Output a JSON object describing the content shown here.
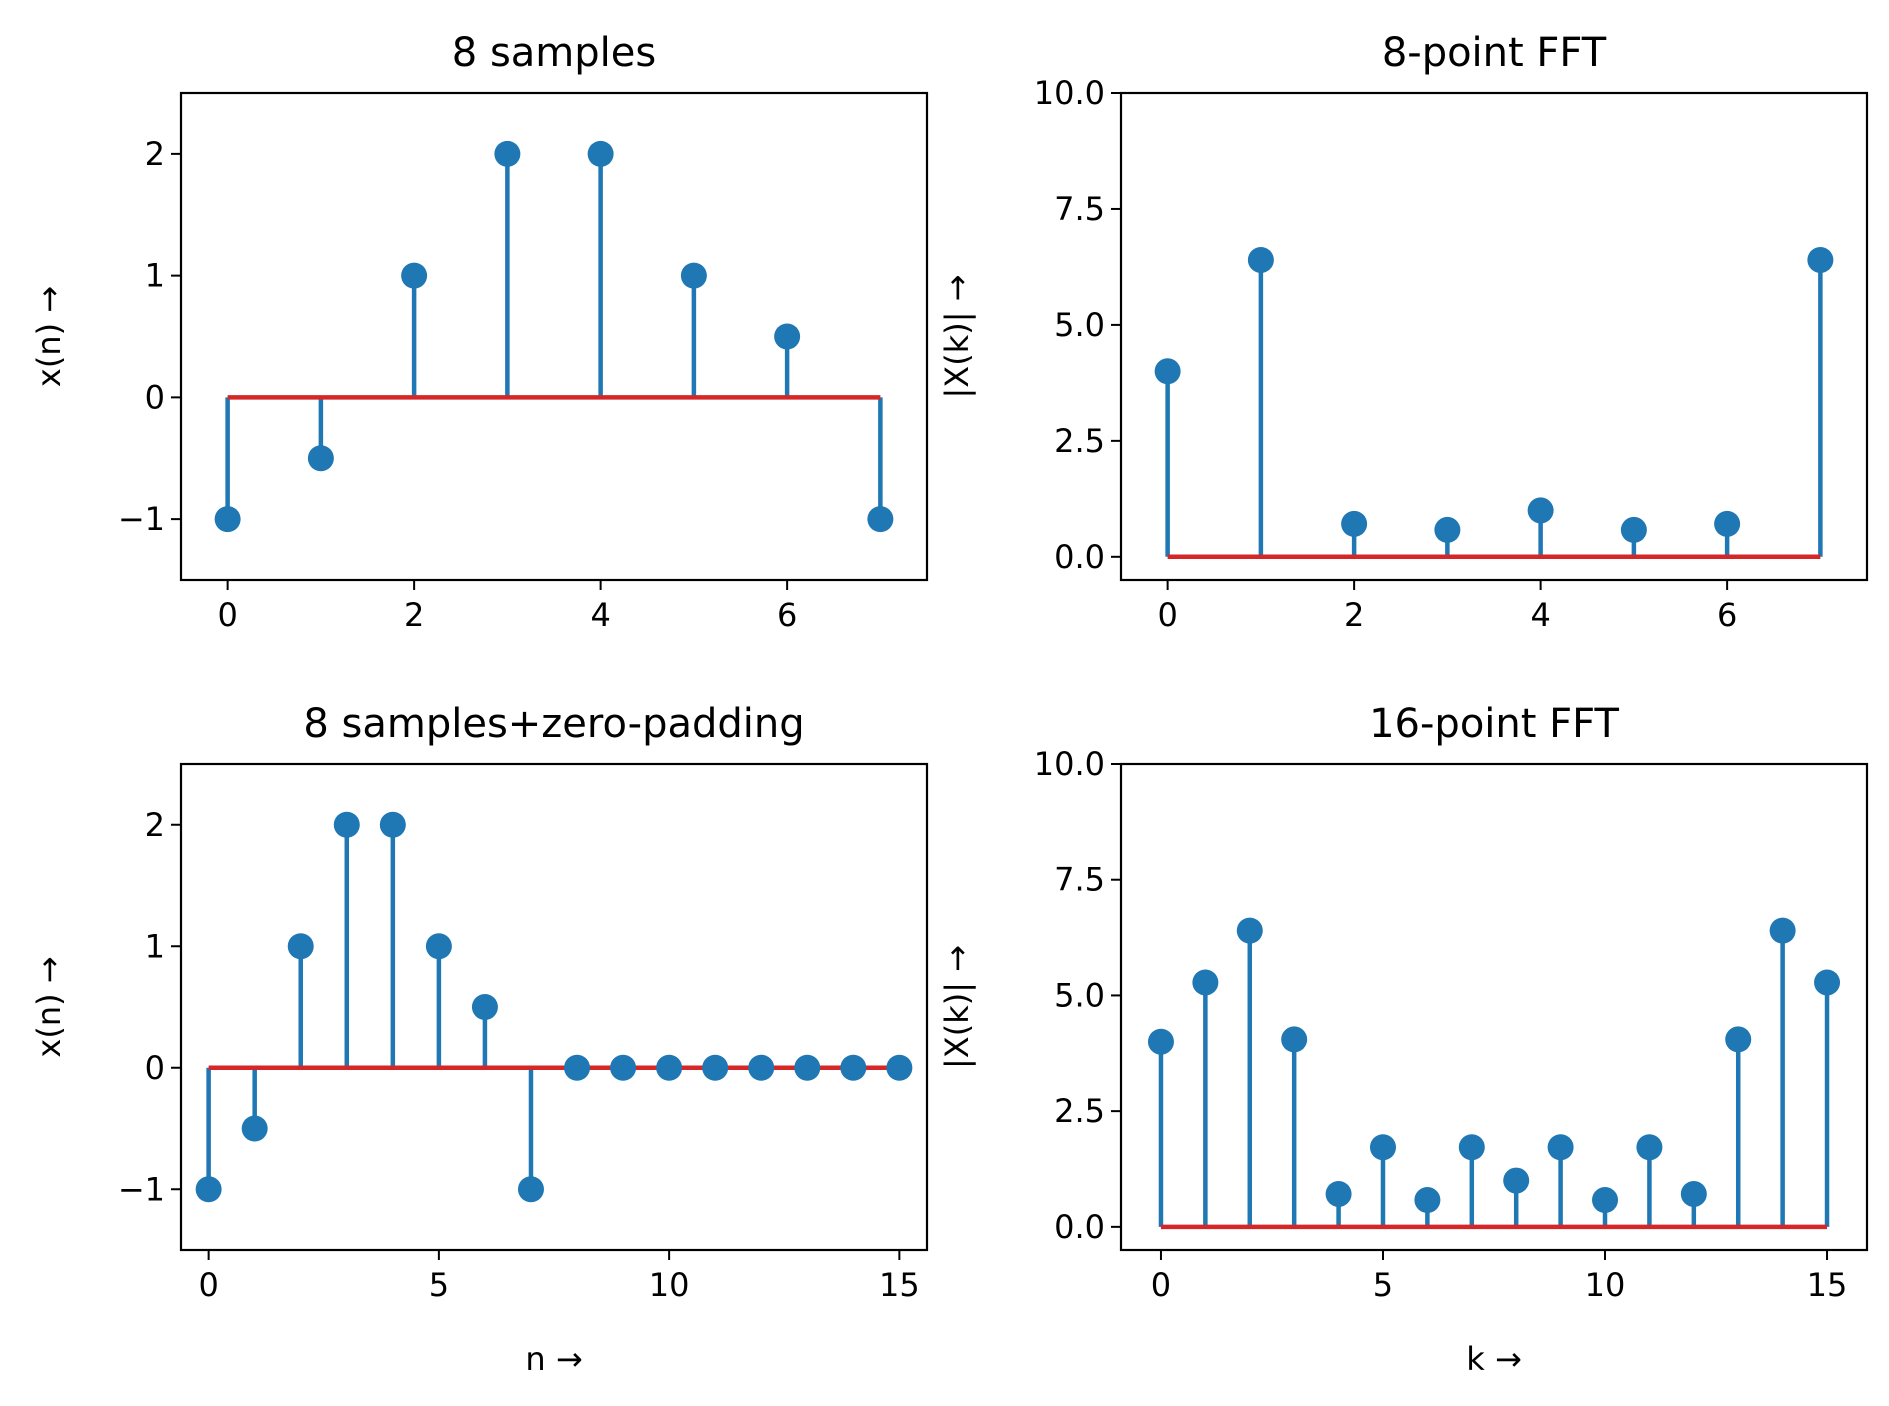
{
  "colors": {
    "stem": "#1f77b4",
    "baseline": "#d62728",
    "axes": "#000000",
    "background": "#ffffff"
  },
  "chart_data": [
    {
      "type": "stem",
      "title": "8 samples",
      "xlabel": "",
      "ylabel": "x(n) →",
      "xlim": [
        -0.5,
        7.5
      ],
      "ylim": [
        -1.5,
        2.5
      ],
      "xticks": [
        0,
        2,
        4,
        6
      ],
      "yticks": [
        -1,
        0,
        1,
        2
      ],
      "xtick_labels": [
        "0",
        "2",
        "4",
        "6"
      ],
      "ytick_labels": [
        "−1",
        "0",
        "1",
        "2"
      ],
      "x": [
        0,
        1,
        2,
        3,
        4,
        5,
        6,
        7
      ],
      "values": [
        -1,
        -0.5,
        1,
        2,
        2,
        1,
        0.5,
        -1
      ]
    },
    {
      "type": "stem",
      "title": "8-point FFT",
      "xlabel": "",
      "ylabel": "|X(k)| →",
      "xlim": [
        -0.5,
        7.5
      ],
      "ylim": [
        -0.5,
        10
      ],
      "xticks": [
        0,
        2,
        4,
        6
      ],
      "yticks": [
        0,
        2.5,
        5,
        7.5,
        10
      ],
      "xtick_labels": [
        "0",
        "2",
        "4",
        "6"
      ],
      "ytick_labels": [
        "0.0",
        "2.5",
        "5.0",
        "7.5",
        "10.0"
      ],
      "x": [
        0,
        1,
        2,
        3,
        4,
        5,
        6,
        7
      ],
      "values": [
        4,
        6.4,
        0.71,
        0.58,
        1,
        0.58,
        0.71,
        6.4
      ]
    },
    {
      "type": "stem",
      "title": "8 samples+zero-padding",
      "xlabel": "n →",
      "ylabel": "x(n) →",
      "xlim": [
        -0.6,
        15.6
      ],
      "ylim": [
        -1.5,
        2.5
      ],
      "xticks": [
        0,
        5,
        10,
        15
      ],
      "yticks": [
        -1,
        0,
        1,
        2
      ],
      "xtick_labels": [
        "0",
        "5",
        "10",
        "15"
      ],
      "ytick_labels": [
        "−1",
        "0",
        "1",
        "2"
      ],
      "x": [
        0,
        1,
        2,
        3,
        4,
        5,
        6,
        7,
        8,
        9,
        10,
        11,
        12,
        13,
        14,
        15
      ],
      "values": [
        -1,
        -0.5,
        1,
        2,
        2,
        1,
        0.5,
        -1,
        0,
        0,
        0,
        0,
        0,
        0,
        0,
        0
      ]
    },
    {
      "type": "stem",
      "title": "16-point FFT",
      "xlabel": "k →",
      "ylabel": "|X(k)| →",
      "xlim": [
        -0.9,
        15.9
      ],
      "ylim": [
        -0.5,
        10
      ],
      "xticks": [
        0,
        5,
        10,
        15
      ],
      "yticks": [
        0,
        2.5,
        5,
        7.5,
        10
      ],
      "xtick_labels": [
        "0",
        "5",
        "10",
        "15"
      ],
      "ytick_labels": [
        "0.0",
        "2.5",
        "5.0",
        "7.5",
        "10.0"
      ],
      "x": [
        0,
        1,
        2,
        3,
        4,
        5,
        6,
        7,
        8,
        9,
        10,
        11,
        12,
        13,
        14,
        15
      ],
      "values": [
        4,
        5.28,
        6.4,
        4.05,
        0.71,
        1.72,
        0.58,
        1.72,
        1,
        1.72,
        0.58,
        1.72,
        0.71,
        4.05,
        6.4,
        5.28
      ]
    }
  ]
}
